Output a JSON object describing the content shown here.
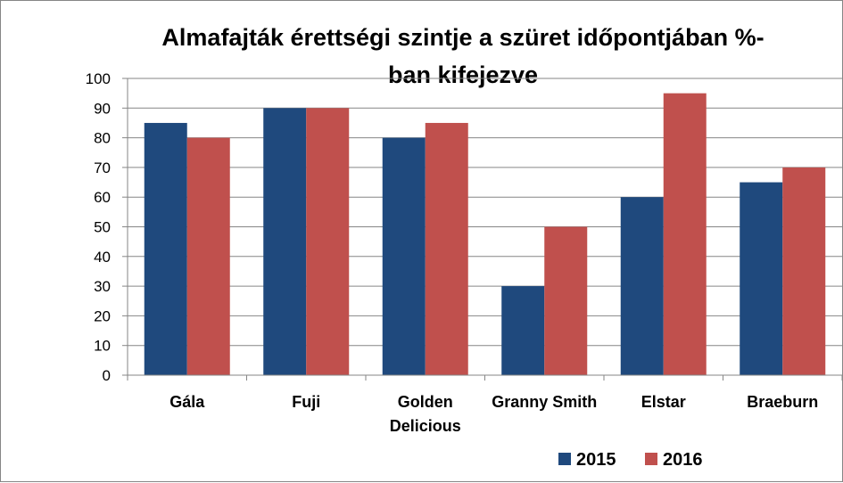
{
  "chart_data": {
    "type": "bar",
    "title": "Almafajták érettségi szintje a szüret időpontjában %-ban kifejezve",
    "title_lines": [
      "Almafajták  érettségi szintje a szüret időpontjában %-",
      "ban kifejezve"
    ],
    "categories": [
      "Gála",
      "Fuji",
      "Golden Delicious",
      "Granny Smith",
      "Elstar",
      "Braeburn"
    ],
    "category_lines": [
      [
        "Gála"
      ],
      [
        "Fuji"
      ],
      [
        "Golden",
        "Delicious"
      ],
      [
        "Granny Smith"
      ],
      [
        "Elstar"
      ],
      [
        "Braeburn"
      ]
    ],
    "series": [
      {
        "name": "2015",
        "color": "#1f497d",
        "values": [
          85,
          90,
          80,
          30,
          60,
          65
        ]
      },
      {
        "name": "2016",
        "color": "#c0504d",
        "values": [
          80,
          90,
          85,
          50,
          95,
          70
        ]
      }
    ],
    "ylim": [
      0,
      100
    ],
    "yticks": [
      0,
      10,
      20,
      30,
      40,
      50,
      60,
      70,
      80,
      90,
      100
    ],
    "grid": true,
    "legend_position": "bottom-right"
  }
}
